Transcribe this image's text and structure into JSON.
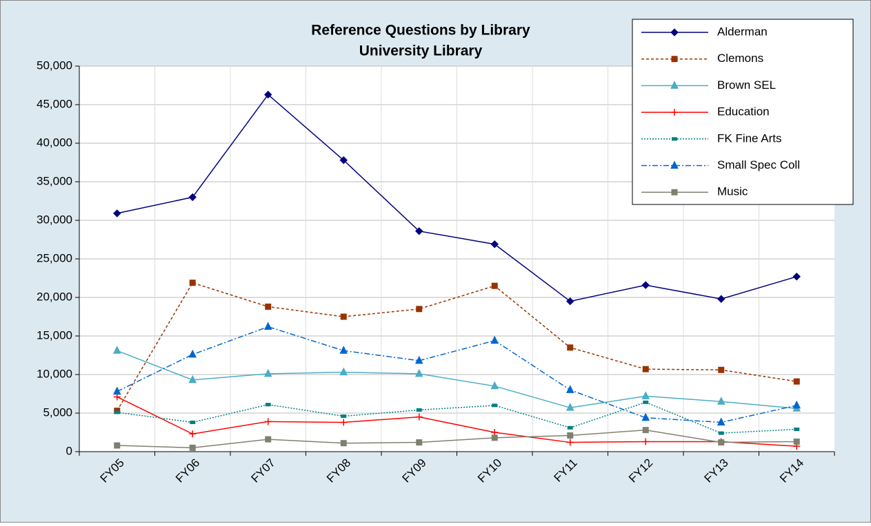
{
  "chart_data": {
    "type": "line",
    "title": [
      "Reference Questions by Library",
      "University Library"
    ],
    "categories": [
      "FY05",
      "FY06",
      "FY07",
      "FY08",
      "FY09",
      "FY10",
      "FY11",
      "FY12",
      "FY13",
      "FY14"
    ],
    "series": [
      {
        "name": "Alderman",
        "color": "#000080",
        "marker": "diamond",
        "dash": "",
        "values": [
          30900,
          33000,
          46300,
          37800,
          28600,
          26900,
          19500,
          21600,
          19800,
          22700
        ]
      },
      {
        "name": "Clemons",
        "color": "#993300",
        "marker": "square",
        "dash": "4 3",
        "values": [
          5300,
          21900,
          18800,
          17500,
          18500,
          21500,
          13500,
          10700,
          10600,
          9100
        ]
      },
      {
        "name": "Brown SEL",
        "color": "#4bacc6",
        "marker": "triangle",
        "dash": "",
        "values": [
          13100,
          9300,
          10100,
          10300,
          10100,
          8500,
          5700,
          7200,
          6500,
          5600
        ]
      },
      {
        "name": "Education",
        "color": "#ff0000",
        "marker": "plus",
        "dash": "",
        "values": [
          7100,
          2300,
          3900,
          3800,
          4500,
          2500,
          1200,
          1300,
          1300,
          700
        ]
      },
      {
        "name": "FK Fine Arts",
        "color": "#008080",
        "marker": "dash",
        "dash": "2 2",
        "values": [
          5100,
          3800,
          6100,
          4600,
          5400,
          6000,
          3100,
          6400,
          2400,
          2900
        ]
      },
      {
        "name": "Small Spec Coll",
        "color": "#0066cc",
        "marker": "triangle",
        "dash": "8 3 2 3",
        "values": [
          7800,
          12600,
          16200,
          13100,
          11800,
          14400,
          8000,
          4400,
          3800,
          6000
        ]
      },
      {
        "name": "Music",
        "color": "#808070",
        "marker": "square",
        "dash": "",
        "values": [
          800,
          500,
          1600,
          1100,
          1200,
          1800,
          2100,
          2800,
          1200,
          1300
        ]
      }
    ],
    "ylim": [
      0,
      50000
    ],
    "yticks": [
      0,
      {
        "value": 5000,
        "label": "5,000"
      },
      {
        "value": 10000,
        "label": "10,000"
      },
      {
        "value": 15000,
        "label": "15,000"
      },
      {
        "value": 20000,
        "label": "20,000"
      },
      {
        "value": 25000,
        "label": "25,000"
      },
      {
        "value": 30000,
        "label": "30,000"
      },
      {
        "value": 35000,
        "label": "35,000"
      },
      {
        "value": 40000,
        "label": "40,000"
      },
      {
        "value": 45000,
        "label": "45,000"
      },
      {
        "value": 50000,
        "label": "50,000"
      }
    ],
    "grid": true,
    "legend": "upper right"
  }
}
